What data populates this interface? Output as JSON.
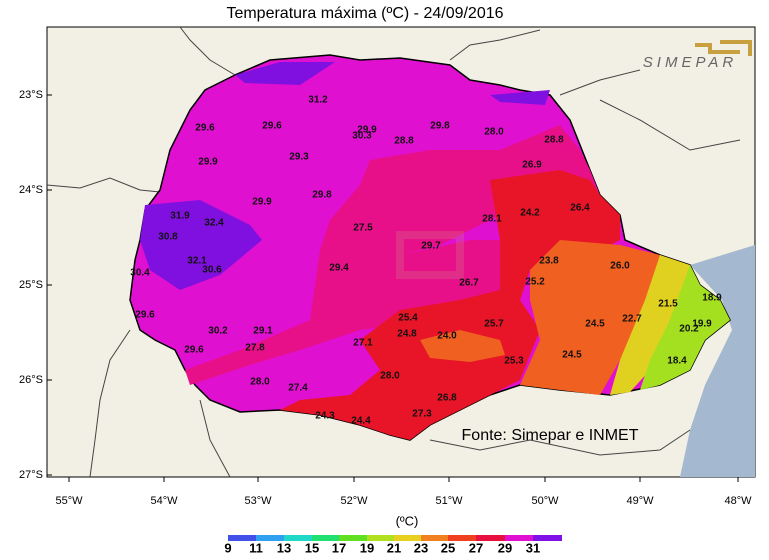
{
  "title": "Temperatura máxima (ºC)  -  24/09/2016",
  "logo": "SIMEPAR",
  "source": "Fonte: Simepar e INMET",
  "lat_labels": [
    "23°S",
    "24°S",
    "25°S",
    "26°S",
    "27°S"
  ],
  "lon_labels": [
    "55°W",
    "54°W",
    "53°W",
    "52°W",
    "51°W",
    "50°W",
    "49°W",
    "48°W"
  ],
  "colorbar": {
    "title": "(ºC)",
    "labels": [
      9,
      11,
      13,
      15,
      17,
      19,
      21,
      23,
      25,
      27,
      29,
      31
    ]
  },
  "stations": [
    "31.2",
    "29.6",
    "29.6",
    "29.9",
    "30.3",
    "29.8",
    "28.0",
    "28.8",
    "28.8",
    "29.9",
    "29.3",
    "26.9",
    "29.8",
    "29.9",
    "31.9",
    "32.4",
    "28.1",
    "24.2",
    "26.4",
    "27.5",
    "30.8",
    "29.7",
    "32.1",
    "30.6",
    "29.4",
    "23.8",
    "26.0",
    "30.4",
    "26.7",
    "25.2",
    "21.5",
    "18.9",
    "29.6",
    "25.4",
    "22.7",
    "24.5",
    "30.2",
    "29.1",
    "25.7",
    "20.2",
    "19.9",
    "24.8",
    "24.0",
    "27.1",
    "27.8",
    "29.6",
    "24.5",
    "25.3",
    "18.4",
    "28.0",
    "27.4",
    "28.0",
    "26.8",
    "24.3",
    "24.4",
    "27.3"
  ]
}
